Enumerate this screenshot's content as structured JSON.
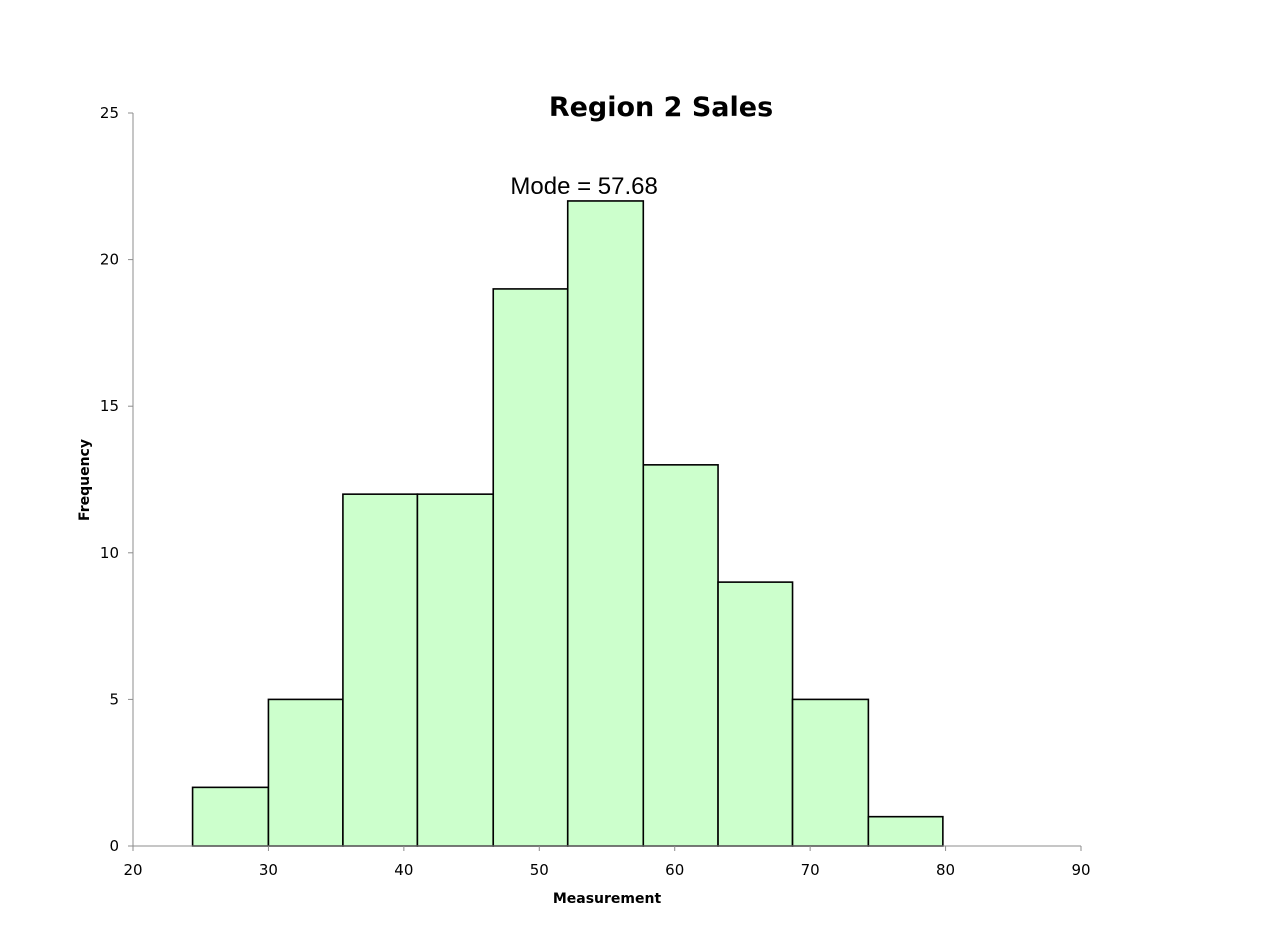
{
  "chart_data": {
    "type": "bar",
    "title": "Region 2 Sales",
    "annotation": {
      "text": "Mode = 57.68",
      "x": 52.5,
      "y": 22
    },
    "xlabel": "Measurement",
    "ylabel": "Frequency",
    "xlim": [
      20,
      90
    ],
    "ylim": [
      0,
      25
    ],
    "xticks": [
      20,
      30,
      40,
      50,
      60,
      70,
      80,
      90
    ],
    "yticks": [
      0,
      5,
      10,
      15,
      20,
      25
    ],
    "bins": [
      {
        "start": 24.4,
        "end": 30.0,
        "count": 2
      },
      {
        "start": 30.0,
        "end": 35.5,
        "count": 5
      },
      {
        "start": 35.5,
        "end": 41.0,
        "count": 12
      },
      {
        "start": 41.0,
        "end": 46.6,
        "count": 12
      },
      {
        "start": 46.6,
        "end": 52.1,
        "count": 19
      },
      {
        "start": 52.1,
        "end": 57.68,
        "count": 22
      },
      {
        "start": 57.68,
        "end": 63.2,
        "count": 13
      },
      {
        "start": 63.2,
        "end": 68.7,
        "count": 9
      },
      {
        "start": 68.7,
        "end": 74.3,
        "count": 5
      },
      {
        "start": 74.3,
        "end": 79.8,
        "count": 1
      }
    ],
    "bar_color": "#ccffcc",
    "bar_edge_color": "#000000",
    "grid": false,
    "legend": "none"
  }
}
